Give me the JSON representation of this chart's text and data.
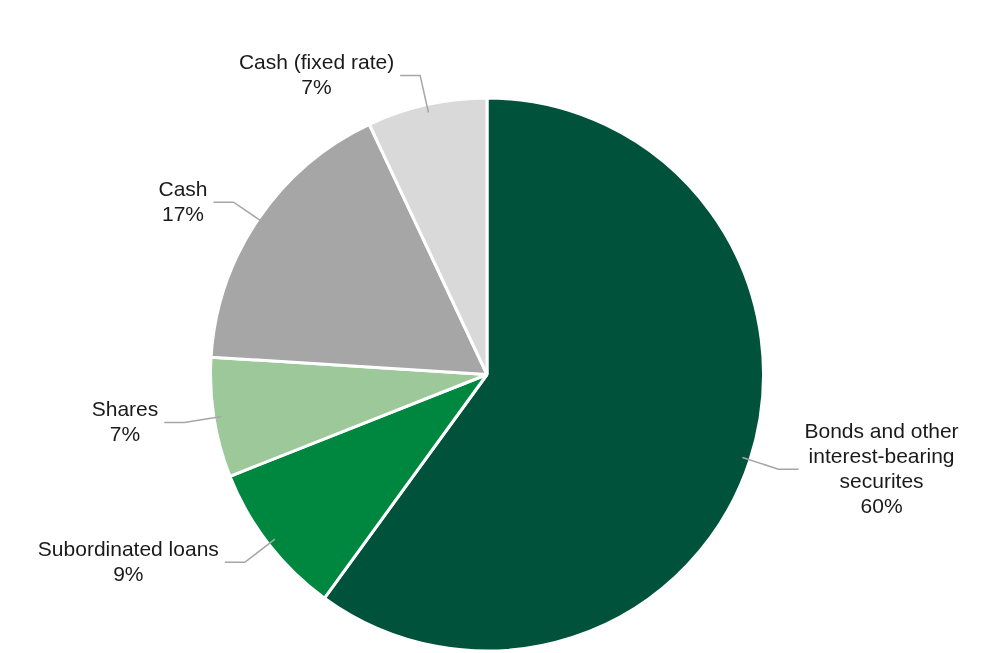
{
  "chart_data": {
    "type": "pie",
    "categories": [
      "Bonds and other interest-bearing securites",
      "Subordinated loans",
      "Shares",
      "Cash",
      "Cash (fixed rate)"
    ],
    "values": [
      60,
      9,
      7,
      17,
      7
    ],
    "value_labels": [
      "60%",
      "9%",
      "7%",
      "17%",
      "7%"
    ],
    "colors": [
      "#00533a",
      "#00873f",
      "#9dc99a",
      "#a6a6a6",
      "#d9d9d9"
    ],
    "legend": false
  }
}
